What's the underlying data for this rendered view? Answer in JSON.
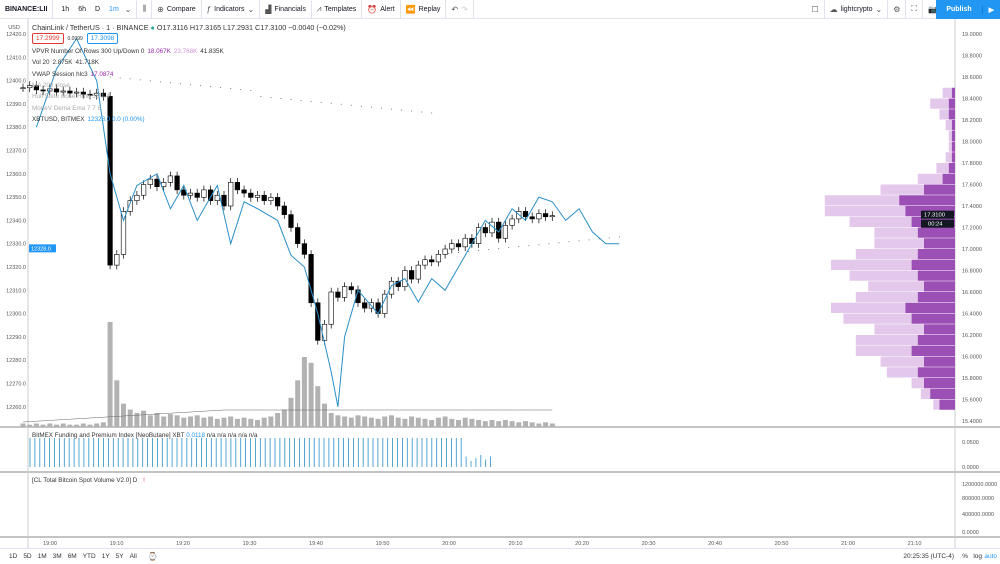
{
  "toolbar": {
    "symbol": "BINANCE:LII",
    "intervals": [
      "1h",
      "6h",
      "D",
      "1m"
    ],
    "active_interval": "1m",
    "compare": "Compare",
    "indicators": "Indicators",
    "financials": "Financials",
    "templates": "Templates",
    "alert": "Alert",
    "replay": "Replay",
    "user": "lightcrypto",
    "publish": "Publish"
  },
  "legend": {
    "title": "ChainLink / TetherUS · 1 · BINANCE",
    "ohlc": "O17.3116 H17.3165 L17.2931 C17.3100 −0.0040 (−0.02%)",
    "bid": "17.2999",
    "spread": "0.0099",
    "ask": "17.3098",
    "lines": [
      {
        "label": "VPVR Number Of Rows 300 Up/Down 0",
        "values": [
          {
            "v": "18.067K",
            "c": "#9c27b0"
          },
          {
            "v": "23.768K",
            "c": "#ce93d8"
          },
          {
            "v": "41.835K",
            "c": "#333"
          }
        ]
      },
      {
        "label": "Vol 20",
        "values": [
          {
            "v": "2.875K",
            "c": "#333"
          },
          {
            "v": "41.718K",
            "c": "#333"
          }
        ]
      },
      {
        "label": "VWAP Session hlc3",
        "values": [
          {
            "v": "17.0874",
            "c": "#9c27b0"
          }
        ]
      },
      {
        "label": "MA 200 close",
        "values": [],
        "muted": true
      },
      {
        "label": "Hull Suite close Hma 55 1.4",
        "values": [],
        "muted": true
      },
      {
        "label": "MoneV Dema Ema 7 7 8",
        "values": [],
        "muted": true
      },
      {
        "label": "XBTUSD, BITMEX",
        "values": [
          {
            "v": "12328.0 0.0 (0.00%)",
            "c": "#2196f3"
          }
        ]
      }
    ]
  },
  "funding_legend": {
    "label": "BitMEX Funding and Premium Index [NeoButane] XBT",
    "value": "0.0118",
    "na": "n/a n/a n/a n/a n/a"
  },
  "spot_legend": {
    "label": "[CL Total Bitcoin Spot Volume V2.0] D",
    "warn": "!"
  },
  "left_axis": {
    "unit": "USD",
    "ticks": [
      "12420.0",
      "12410.0",
      "12400.0",
      "12390.0",
      "12380.0",
      "12370.0",
      "12360.0",
      "12350.0",
      "12340.0",
      "12330.0",
      "12320.0",
      "12310.0",
      "12300.0",
      "12290.0",
      "12280.0",
      "12270.0",
      "12260.0"
    ],
    "current": "12328.0"
  },
  "right_axis": {
    "ticks": [
      "19.0000",
      "18.8000",
      "18.6000",
      "18.4000",
      "18.2000",
      "18.0000",
      "17.8000",
      "17.6000",
      "17.4000",
      "17.2000",
      "17.0000",
      "16.8000",
      "16.6000",
      "16.4000",
      "16.2000",
      "16.0000",
      "15.8000",
      "15.6000",
      "15.4000"
    ],
    "current": "17.3100",
    "countdown": "00:24"
  },
  "funding_axis": [
    "0.0500",
    "0.0000"
  ],
  "spot_axis": [
    "1200000.0000",
    "800000.0000",
    "400000.0000",
    "0.0000"
  ],
  "time_axis": [
    "19:00",
    "19:10",
    "19:20",
    "19:30",
    "19:40",
    "19:50",
    "20:00",
    "20:10",
    "20:20",
    "20:30",
    "20:40",
    "20:50",
    "21:00",
    "21:10"
  ],
  "bottom": {
    "ranges": [
      "1D",
      "5D",
      "1M",
      "3M",
      "6M",
      "YTD",
      "1Y",
      "5Y",
      "All"
    ],
    "clock": "20:25:35 (UTC-4)",
    "pct": "%",
    "log": "log",
    "auto": "auto"
  },
  "colors": {
    "accent": "#2196f3",
    "up": "#ffffff",
    "down": "#000000",
    "xbt": "#2a8fc7",
    "vp_up": "#9c4fb5",
    "vp_down": "#e4c8ec",
    "volume": "#b2b2b2"
  },
  "chart_data": {
    "type": "candlestick",
    "start_time": "18:56",
    "closes": [
      18.5,
      18.52,
      18.48,
      18.47,
      18.49,
      18.46,
      18.47,
      18.45,
      18.46,
      18.44,
      18.43,
      18.45,
      18.42,
      16.85,
      16.95,
      17.35,
      17.45,
      17.5,
      17.6,
      17.65,
      17.58,
      17.62,
      17.68,
      17.55,
      17.5,
      17.52,
      17.48,
      17.55,
      17.45,
      17.5,
      17.4,
      17.62,
      17.55,
      17.52,
      17.48,
      17.5,
      17.45,
      17.48,
      17.4,
      17.32,
      17.2,
      17.05,
      16.95,
      16.5,
      16.15,
      16.3,
      16.6,
      16.55,
      16.65,
      16.62,
      16.5,
      16.45,
      16.5,
      16.4,
      16.58,
      16.7,
      16.65,
      16.8,
      16.72,
      16.85,
      16.9,
      16.88,
      16.95,
      17.0,
      17.05,
      17.02,
      17.1,
      17.05,
      17.2,
      17.15,
      17.25,
      17.1,
      17.22,
      17.28,
      17.35,
      17.3,
      17.28,
      17.33,
      17.3,
      17.31
    ],
    "volumes": [
      3,
      2,
      3,
      2,
      3,
      2,
      3,
      2,
      2,
      3,
      2,
      3,
      4,
      90,
      40,
      20,
      15,
      12,
      14,
      10,
      12,
      9,
      11,
      10,
      8,
      9,
      10,
      8,
      9,
      7,
      8,
      9,
      7,
      8,
      7,
      6,
      8,
      9,
      12,
      15,
      25,
      40,
      60,
      55,
      35,
      20,
      12,
      10,
      9,
      8,
      10,
      9,
      8,
      7,
      9,
      10,
      8,
      7,
      9,
      8,
      7,
      6,
      8,
      9,
      7,
      6,
      8,
      7,
      6,
      5,
      6,
      5,
      6,
      5,
      4,
      5,
      4,
      3,
      4,
      3
    ],
    "xbt": [
      [
        2,
        12380
      ],
      [
        5,
        12405
      ],
      [
        8,
        12418
      ],
      [
        11,
        12400
      ],
      [
        13,
        12360
      ],
      [
        15,
        12340
      ],
      [
        17,
        12355
      ],
      [
        20,
        12360
      ],
      [
        22,
        12345
      ],
      [
        24,
        12355
      ],
      [
        26,
        12340
      ],
      [
        29,
        12355
      ],
      [
        31,
        12330
      ],
      [
        33,
        12348
      ],
      [
        35,
        12345
      ],
      [
        38,
        12340
      ],
      [
        40,
        12325
      ],
      [
        42,
        12320
      ],
      [
        44,
        12300
      ],
      [
        46,
        12275
      ],
      [
        47,
        12260
      ],
      [
        48,
        12290
      ],
      [
        50,
        12310
      ],
      [
        53,
        12300
      ],
      [
        55,
        12312
      ],
      [
        57,
        12315
      ],
      [
        59,
        12305
      ],
      [
        61,
        12315
      ],
      [
        63,
        12310
      ],
      [
        65,
        12320
      ],
      [
        67,
        12330
      ],
      [
        69,
        12340
      ],
      [
        71,
        12335
      ],
      [
        73,
        12345
      ],
      [
        75,
        12340
      ],
      [
        77,
        12350
      ],
      [
        79,
        12348
      ],
      [
        81,
        12340
      ],
      [
        83,
        12345
      ],
      [
        85,
        12335
      ],
      [
        87,
        12330
      ],
      [
        89,
        12330
      ]
    ],
    "volume_profile": {
      "price_from": 15.5,
      "step": 0.1,
      "rows": [
        [
          5,
          2
        ],
        [
          8,
          3
        ],
        [
          10,
          4
        ],
        [
          12,
          10
        ],
        [
          10,
          14
        ],
        [
          14,
          18
        ],
        [
          12,
          20
        ],
        [
          10,
          16
        ],
        [
          14,
          22
        ],
        [
          16,
          24
        ],
        [
          12,
          20
        ],
        [
          10,
          18
        ],
        [
          12,
          22
        ],
        [
          14,
          26
        ],
        [
          12,
          20
        ],
        [
          10,
          16
        ],
        [
          12,
          14
        ],
        [
          14,
          20
        ],
        [
          16,
          26
        ],
        [
          18,
          24
        ],
        [
          10,
          14
        ],
        [
          4,
          8
        ],
        [
          2,
          4
        ],
        [
          1,
          2
        ],
        [
          1,
          1
        ],
        [
          1,
          1
        ],
        [
          1,
          2
        ],
        [
          2,
          3
        ],
        [
          2,
          6
        ],
        [
          1,
          3
        ],
        [
          0,
          0
        ]
      ]
    }
  }
}
